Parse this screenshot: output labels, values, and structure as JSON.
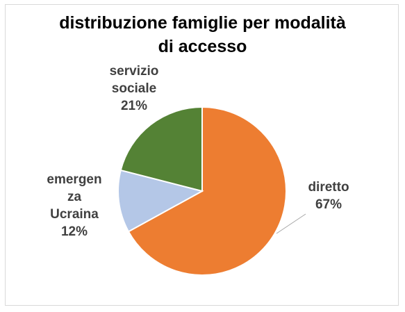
{
  "chart_data": {
    "type": "pie",
    "title": [
      "distribuzione famiglie per modalità",
      "di accesso"
    ],
    "slices": [
      {
        "label": [
          "diretto"
        ],
        "percent_label": "67%",
        "value": 67,
        "color": "#ED7D31"
      },
      {
        "label": [
          "emergen",
          "za",
          "Ucraina"
        ],
        "percent_label": "12%",
        "value": 12,
        "color": "#B4C7E7"
      },
      {
        "label": [
          "servizio",
          "sociale"
        ],
        "percent_label": "21%",
        "value": 21,
        "color": "#548235"
      }
    ],
    "start_angle_deg": 0,
    "direction": "clockwise",
    "slice_border_color": "#FFFFFF",
    "leader_line_color": "#A6A6A6"
  }
}
